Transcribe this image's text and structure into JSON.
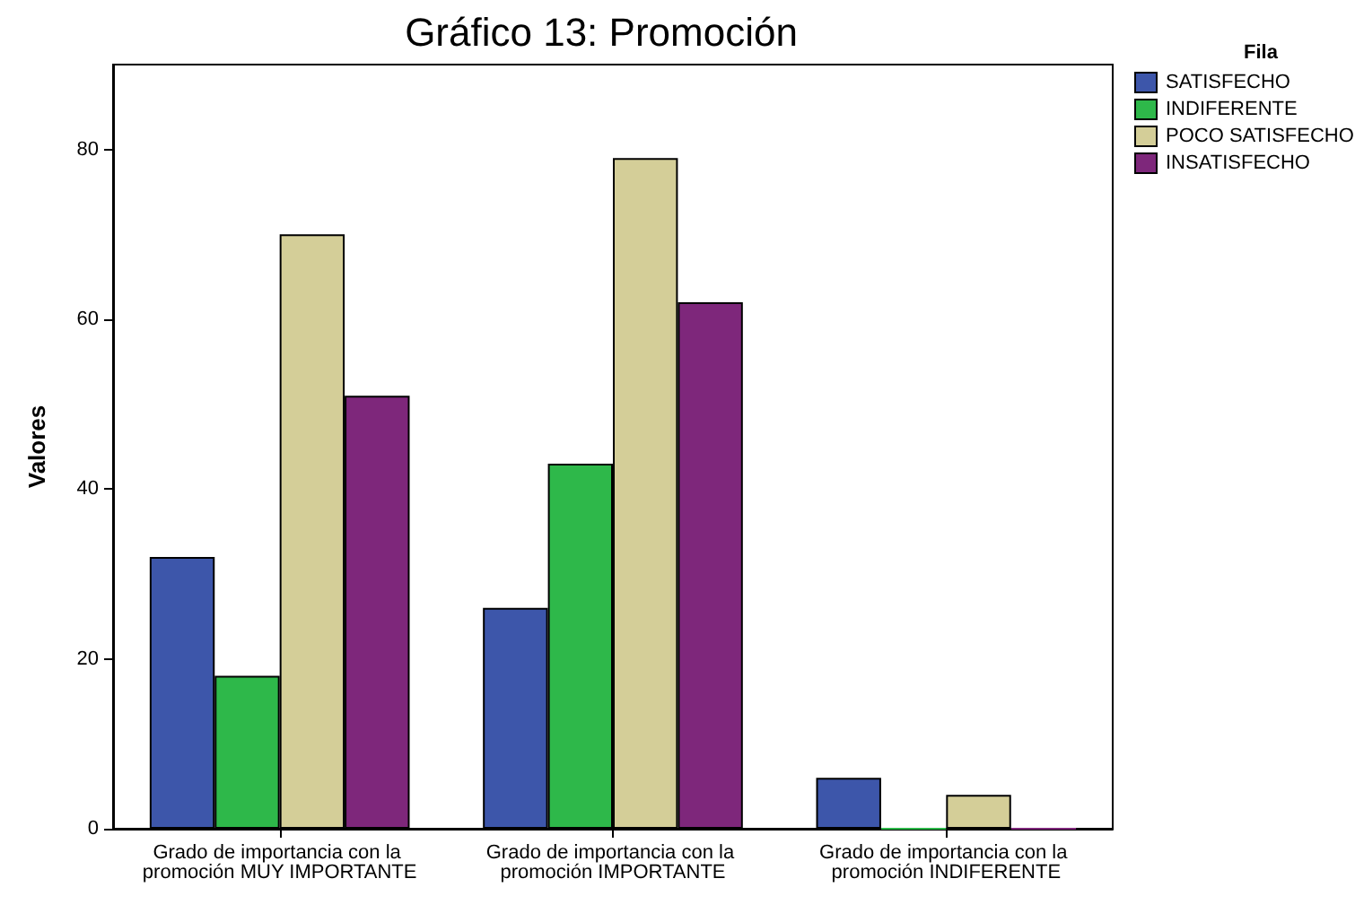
{
  "chart_data": {
    "type": "bar",
    "title": "Gráfico 13: Promoción",
    "ylabel": "Valores",
    "legend_title": "Fila",
    "categories": [
      "Grado de importancia con la promoción MUY IMPORTANTE",
      "Grado de importancia con la promoción IMPORTANTE",
      "Grado de importancia con la promoción INDIFERENTE"
    ],
    "series": [
      {
        "name": "SATISFECHO",
        "color": "#3d56aa",
        "values": [
          32,
          26,
          6
        ]
      },
      {
        "name": "INDIFERENTE",
        "color": "#2eb84a",
        "values": [
          18,
          43,
          0
        ]
      },
      {
        "name": "POCO SATISFECHO",
        "color": "#d4ce98",
        "values": [
          70,
          79,
          4
        ]
      },
      {
        "name": "INSATISFECHO",
        "color": "#7e277b",
        "values": [
          51,
          62,
          0
        ]
      }
    ],
    "ylim": [
      0,
      90
    ],
    "yticks": [
      0,
      20,
      40,
      60,
      80
    ],
    "grid": false,
    "legend": "top right"
  }
}
